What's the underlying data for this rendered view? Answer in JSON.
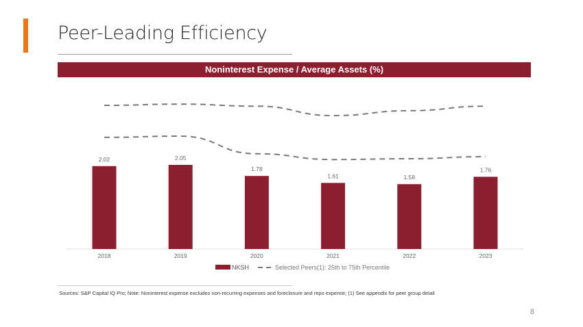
{
  "slide": {
    "title": "Peer-Leading Efficiency",
    "page_number": "8",
    "footnote": "Sources: S&P Capital IQ Pro;  Note: Noninterest expense excludes non-recurring expenses and foreclosure and repo expense; (1) See appendix for peer group detail",
    "accent_color": "#e8761e"
  },
  "chart_data": {
    "type": "bar",
    "title": "Noninterest Expense / Average Assets (%)",
    "categories": [
      "2018",
      "2019",
      "2020",
      "2021",
      "2022",
      "2023"
    ],
    "series": [
      {
        "name": "NKSH",
        "type": "bar",
        "color": "#8b1e2f",
        "values": [
          2.02,
          2.05,
          1.78,
          1.61,
          1.58,
          1.76
        ],
        "labels": [
          "2.02",
          "2.05",
          "1.78",
          "1.61",
          "1.58",
          "1.76"
        ]
      },
      {
        "name": "Selected Peers(1): 25th to 75th Percentile",
        "type": "dashed-line",
        "color": "#777777",
        "upper": [
          3.5,
          3.53,
          3.48,
          3.25,
          3.37,
          3.48
        ],
        "lower": [
          2.72,
          2.75,
          2.32,
          2.18,
          2.2,
          2.25
        ]
      }
    ],
    "ylim": [
      0,
      3.6
    ],
    "y_axis_visible": false,
    "grid": false,
    "legend_position": "bottom"
  }
}
